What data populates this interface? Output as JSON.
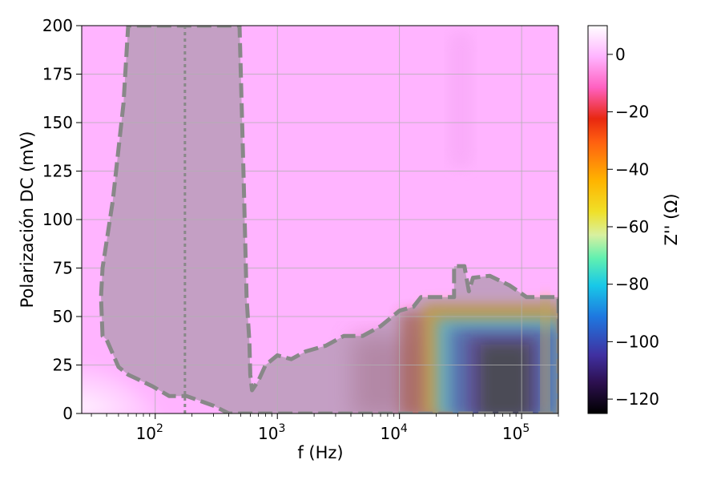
{
  "chart_data": {
    "type": "heatmap",
    "title": "",
    "xlabel": "f (Hz)",
    "ylabel": "Polarización DC (mV)",
    "x_scale": "log",
    "xlim": [
      25,
      200000
    ],
    "ylim": [
      0,
      200
    ],
    "x_ticks": [
      {
        "value": 100,
        "base": "10",
        "exp": "2"
      },
      {
        "value": 1000,
        "base": "10",
        "exp": "3"
      },
      {
        "value": 10000,
        "base": "10",
        "exp": "4"
      },
      {
        "value": 100000,
        "base": "10",
        "exp": "5"
      }
    ],
    "y_ticks": [
      "0",
      "25",
      "50",
      "75",
      "100",
      "125",
      "150",
      "175",
      "200"
    ],
    "grid": true,
    "colorbar": {
      "label": "Z'' (Ω)",
      "min": -125,
      "max": 10,
      "ticks": [
        "0",
        "−20",
        "−40",
        "−60",
        "−80",
        "−100",
        "−120"
      ],
      "tick_values": [
        0,
        -20,
        -40,
        -60,
        -80,
        -100,
        -120
      ],
      "colormap": "gist_ncar_r"
    },
    "background_value": 0,
    "low_corner_value": 8,
    "mid_band_value": -25,
    "resonance_region": {
      "f_range": [
        15000,
        200000
      ],
      "polarization_range": [
        0,
        60
      ],
      "min_value": -125,
      "min_at_f": 60000
    },
    "contour_region_1": {
      "style": "dashed",
      "color": "#888888",
      "boundary": [
        [
          37,
          40
        ],
        [
          36,
          60
        ],
        [
          37,
          75
        ],
        [
          45,
          110
        ],
        [
          55,
          160
        ],
        [
          60,
          200
        ],
        [
          490,
          200
        ],
        [
          530,
          120
        ],
        [
          560,
          60
        ],
        [
          590,
          37
        ],
        [
          600,
          20
        ],
        [
          620,
          12
        ],
        [
          700,
          17
        ],
        [
          800,
          25
        ],
        [
          1000,
          30
        ],
        [
          1300,
          28
        ],
        [
          1700,
          32
        ],
        [
          2500,
          35
        ],
        [
          3500,
          40
        ],
        [
          5000,
          40
        ],
        [
          7000,
          45
        ],
        [
          10000,
          53
        ],
        [
          13000,
          55
        ],
        [
          15000,
          60
        ],
        [
          20000,
          60
        ],
        [
          28000,
          60
        ],
        [
          28000,
          76
        ],
        [
          34000,
          76
        ],
        [
          37000,
          63
        ],
        [
          40000,
          70
        ],
        [
          55000,
          71
        ],
        [
          80000,
          66
        ],
        [
          110000,
          60
        ],
        [
          200000,
          60
        ],
        [
          200000,
          0
        ],
        [
          400,
          0
        ],
        [
          300,
          4
        ],
        [
          180,
          9
        ],
        [
          130,
          9
        ],
        [
          95,
          14
        ],
        [
          70,
          18
        ],
        [
          60,
          20
        ],
        [
          50,
          24
        ],
        [
          40,
          38
        ],
        [
          37,
          40
        ]
      ]
    },
    "vertical_reference_line": {
      "style": "dotted",
      "color": "#888888",
      "f": 175
    }
  }
}
